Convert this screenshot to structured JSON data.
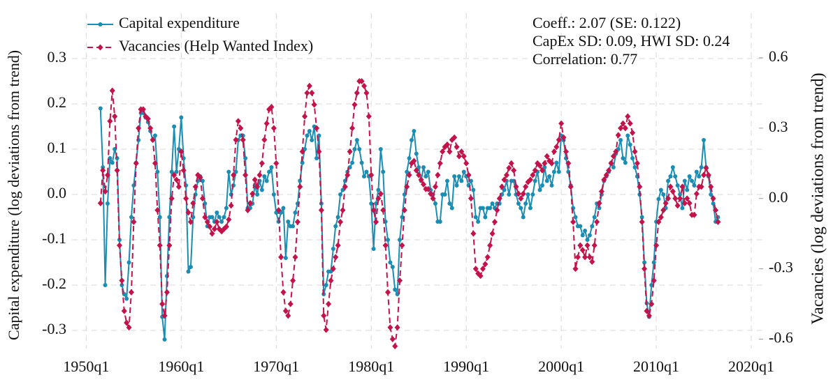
{
  "chart_data": {
    "type": "line",
    "ylabel": "Capital expenditure (log deviations from trend)",
    "y2label": "Vacancies (log deviations from trend)",
    "annotations": [
      "Coeff.: 2.07 (SE: 0.122)",
      "CapEx SD: 0.09, HWI SD: 0.24",
      "Correlation: 0.77"
    ],
    "xlim": [
      "1948q3",
      "2021q2"
    ],
    "xticks": [
      "1950q1",
      "1960q1",
      "1970q1",
      "1980q1",
      "1990q1",
      "2000q1",
      "2010q1",
      "2020q1"
    ],
    "ylim": [
      -0.34,
      0.4
    ],
    "yticks": [
      -0.3,
      -0.2,
      -0.1,
      {
        "value": 0,
        "label": "0.0"
      },
      0.1,
      0.2,
      0.3
    ],
    "y2lim": [
      -0.64,
      0.79
    ],
    "y2ticks": [
      -0.6,
      -0.3,
      {
        "value": 0,
        "label": "0.0"
      },
      0.3,
      0.6
    ],
    "grid": true,
    "legend": "upper left",
    "x": [
      "1951q3",
      "1951q4",
      "1952q1",
      "1952q2",
      "1952q3",
      "1952q4",
      "1953q1",
      "1953q2",
      "1953q3",
      "1953q4",
      "1954q1",
      "1954q2",
      "1954q3",
      "1954q4",
      "1955q1",
      "1955q2",
      "1955q3",
      "1955q4",
      "1956q1",
      "1956q2",
      "1956q3",
      "1956q4",
      "1957q1",
      "1957q2",
      "1957q3",
      "1957q4",
      "1958q1",
      "1958q2",
      "1958q3",
      "1958q4",
      "1959q1",
      "1959q2",
      "1959q3",
      "1959q4",
      "1960q1",
      "1960q2",
      "1960q3",
      "1960q4",
      "1961q1",
      "1961q2",
      "1961q3",
      "1961q4",
      "1962q1",
      "1962q2",
      "1962q3",
      "1962q4",
      "1963q1",
      "1963q2",
      "1963q3",
      "1963q4",
      "1964q1",
      "1964q2",
      "1964q3",
      "1964q4",
      "1965q1",
      "1965q2",
      "1965q3",
      "1965q4",
      "1966q1",
      "1966q2",
      "1966q3",
      "1966q4",
      "1967q1",
      "1967q2",
      "1967q3",
      "1967q4",
      "1968q1",
      "1968q2",
      "1968q3",
      "1968q4",
      "1969q1",
      "1969q2",
      "1969q3",
      "1969q4",
      "1970q1",
      "1970q2",
      "1970q3",
      "1970q4",
      "1971q1",
      "1971q2",
      "1971q3",
      "1971q4",
      "1972q1",
      "1972q2",
      "1972q3",
      "1972q4",
      "1973q1",
      "1973q2",
      "1973q3",
      "1973q4",
      "1974q1",
      "1974q2",
      "1974q3",
      "1974q4",
      "1975q1",
      "1975q2",
      "1975q3",
      "1975q4",
      "1976q1",
      "1976q2",
      "1976q3",
      "1976q4",
      "1977q1",
      "1977q2",
      "1977q3",
      "1977q4",
      "1978q1",
      "1978q2",
      "1978q3",
      "1978q4",
      "1979q1",
      "1979q2",
      "1979q3",
      "1979q4",
      "1980q1",
      "1980q2",
      "1980q3",
      "1980q4",
      "1981q1",
      "1981q2",
      "1981q3",
      "1981q4",
      "1982q1",
      "1982q2",
      "1982q3",
      "1982q4",
      "1983q1",
      "1983q2",
      "1983q3",
      "1983q4",
      "1984q1",
      "1984q2",
      "1984q3",
      "1984q4",
      "1985q1",
      "1985q2",
      "1985q3",
      "1985q4",
      "1986q1",
      "1986q2",
      "1986q3",
      "1986q4",
      "1987q1",
      "1987q2",
      "1987q3",
      "1987q4",
      "1988q1",
      "1988q2",
      "1988q3",
      "1988q4",
      "1989q1",
      "1989q2",
      "1989q3",
      "1989q4",
      "1990q1",
      "1990q2",
      "1990q3",
      "1990q4",
      "1991q1",
      "1991q2",
      "1991q3",
      "1991q4",
      "1992q1",
      "1992q2",
      "1992q3",
      "1992q4",
      "1993q1",
      "1993q2",
      "1993q3",
      "1993q4",
      "1994q1",
      "1994q2",
      "1994q3",
      "1994q4",
      "1995q1",
      "1995q2",
      "1995q3",
      "1995q4",
      "1996q1",
      "1996q2",
      "1996q3",
      "1996q4",
      "1997q1",
      "1997q2",
      "1997q3",
      "1997q4",
      "1998q1",
      "1998q2",
      "1998q3",
      "1998q4",
      "1999q1",
      "1999q2",
      "1999q3",
      "1999q4",
      "2000q1",
      "2000q2",
      "2000q3",
      "2000q4",
      "2001q1",
      "2001q2",
      "2001q3",
      "2001q4",
      "2002q1",
      "2002q2",
      "2002q3",
      "2002q4",
      "2003q1",
      "2003q2",
      "2003q3",
      "2003q4",
      "2004q1",
      "2004q2",
      "2004q3",
      "2004q4",
      "2005q1",
      "2005q2",
      "2005q3",
      "2005q4",
      "2006q1",
      "2006q2",
      "2006q3",
      "2006q4",
      "2007q1",
      "2007q2",
      "2007q3",
      "2007q4",
      "2008q1",
      "2008q2",
      "2008q3",
      "2008q4",
      "2009q1",
      "2009q2",
      "2009q3",
      "2009q4",
      "2010q1",
      "2010q2",
      "2010q3",
      "2010q4",
      "2011q1",
      "2011q2",
      "2011q3",
      "2011q4",
      "2012q1",
      "2012q2",
      "2012q3",
      "2012q4",
      "2013q1",
      "2013q2",
      "2013q3",
      "2013q4",
      "2014q1",
      "2014q2",
      "2014q3",
      "2014q4",
      "2015q1",
      "2015q2",
      "2015q3",
      "2015q4",
      "2016q1",
      "2016q2",
      "2016q3"
    ],
    "series": [
      {
        "name": "Capital expenditure",
        "color": "#1b8db3",
        "marker": "circle",
        "dash": false,
        "values": [
          0.19,
          0.06,
          -0.2,
          -0.02,
          0.08,
          0.07,
          0.1,
          0.08,
          -0.1,
          -0.2,
          -0.22,
          -0.23,
          -0.15,
          -0.05,
          0.02,
          0.07,
          0.12,
          0.18,
          0.18,
          0.17,
          0.16,
          0.14,
          0.12,
          0.13,
          0.05,
          -0.05,
          -0.27,
          -0.32,
          -0.18,
          -0.05,
          0.05,
          0.15,
          0.05,
          0.1,
          0.17,
          0.08,
          0.02,
          -0.17,
          -0.16,
          -0.05,
          0.0,
          0.03,
          0.04,
          0.03,
          -0.02,
          -0.07,
          -0.05,
          -0.05,
          -0.06,
          -0.04,
          -0.05,
          -0.06,
          -0.05,
          -0.03,
          0.05,
          0.0,
          0.02,
          0.05,
          0.12,
          0.13,
          0.13,
          0.08,
          -0.03,
          -0.03,
          -0.02,
          0.02,
          0.0,
          0.03,
          0.01,
          0.04,
          0.03,
          0.05,
          0.06,
          0.0,
          -0.04,
          -0.06,
          -0.04,
          -0.03,
          -0.14,
          -0.06,
          -0.07,
          -0.07,
          -0.04,
          -0.02,
          0.03,
          0.07,
          0.1,
          0.13,
          0.14,
          0.12,
          0.15,
          0.08,
          0.13,
          -0.02,
          -0.22,
          -0.2,
          -0.17,
          -0.17,
          -0.12,
          -0.07,
          -0.05,
          0.0,
          0.01,
          0.03,
          0.05,
          0.06,
          0.07,
          0.1,
          0.12,
          0.1,
          0.07,
          0.04,
          0.05,
          0.04,
          -0.02,
          -0.12,
          -0.02,
          0.01,
          0.1,
          0.05,
          -0.06,
          -0.1,
          -0.15,
          -0.16,
          -0.21,
          -0.22,
          -0.1,
          -0.05,
          0.0,
          0.05,
          0.08,
          0.12,
          0.14,
          0.09,
          0.06,
          0.03,
          0.06,
          0.04,
          0.05,
          0.01,
          0.0,
          -0.02,
          -0.06,
          -0.06,
          0.0,
          0.0,
          0.03,
          -0.02,
          -0.03,
          0.04,
          0.02,
          0.04,
          0.03,
          0.05,
          0.04,
          0.02,
          0.03,
          0.01,
          -0.05,
          -0.06,
          -0.03,
          -0.03,
          -0.05,
          -0.03,
          -0.03,
          -0.02,
          -0.03,
          -0.02,
          -0.02,
          0.0,
          0.01,
          0.03,
          0.0,
          0.03,
          0.03,
          0.0,
          -0.02,
          -0.03,
          -0.05,
          -0.02,
          0.0,
          -0.03,
          0.0,
          0.03,
          0.05,
          0.01,
          0.02,
          0.06,
          0.03,
          0.04,
          0.02,
          0.05,
          0.07,
          0.05,
          0.13,
          0.12,
          0.08,
          0.05,
          0.02,
          -0.03,
          -0.05,
          -0.07,
          -0.07,
          -0.09,
          -0.08,
          -0.1,
          -0.09,
          -0.07,
          -0.05,
          -0.02,
          -0.03,
          0.0,
          0.03,
          0.04,
          0.05,
          0.07,
          0.06,
          0.09,
          0.1,
          0.12,
          0.08,
          0.07,
          0.13,
          0.11,
          0.08,
          0.06,
          0.04,
          0.0,
          -0.05,
          -0.15,
          -0.24,
          -0.27,
          -0.2,
          -0.15,
          -0.06,
          -0.01,
          0.01,
          0.0,
          -0.03,
          0.03,
          0.04,
          0.06,
          0.04,
          0.02,
          0.0,
          -0.03,
          0.03,
          0.01,
          0.04,
          0.03,
          0.02,
          0.05,
          0.04,
          0.06,
          0.12,
          0.06,
          0.04,
          0.0,
          -0.02,
          -0.06,
          -0.05
        ]
      },
      {
        "name": "Vacancies (Help Wanted Index)",
        "color": "#c4124a",
        "marker": "diamond",
        "dash": true,
        "axis": "y2",
        "values": [
          -0.02,
          0.12,
          0.03,
          0.1,
          0.33,
          0.46,
          0.35,
          0.12,
          -0.2,
          -0.35,
          -0.48,
          -0.53,
          -0.55,
          -0.4,
          -0.1,
          0.15,
          0.3,
          0.38,
          0.38,
          0.35,
          0.34,
          0.3,
          0.25,
          0.15,
          -0.05,
          -0.2,
          -0.45,
          -0.5,
          -0.4,
          -0.2,
          0.0,
          0.1,
          0.08,
          0.05,
          0.2,
          0.12,
          0.0,
          -0.06,
          -0.1,
          -0.02,
          0.05,
          0.1,
          0.09,
          0.0,
          -0.08,
          -0.1,
          -0.12,
          -0.15,
          -0.13,
          -0.1,
          -0.13,
          -0.14,
          -0.13,
          -0.12,
          -0.09,
          -0.03,
          0.1,
          0.25,
          0.33,
          0.3,
          0.25,
          0.1,
          -0.05,
          -0.02,
          0.02,
          0.08,
          0.05,
          0.1,
          0.15,
          0.25,
          0.32,
          0.38,
          0.39,
          0.3,
          0.15,
          -0.05,
          -0.25,
          -0.4,
          -0.48,
          -0.5,
          -0.45,
          -0.35,
          -0.25,
          -0.1,
          0.05,
          0.2,
          0.35,
          0.45,
          0.48,
          0.45,
          0.4,
          0.3,
          0.2,
          -0.05,
          -0.5,
          -0.56,
          -0.45,
          -0.35,
          -0.3,
          -0.25,
          -0.2,
          -0.1,
          -0.05,
          0.05,
          0.1,
          0.2,
          0.3,
          0.4,
          0.45,
          0.5,
          0.5,
          0.48,
          0.45,
          0.35,
          0.1,
          -0.05,
          -0.1,
          0.0,
          0.02,
          -0.05,
          -0.2,
          -0.4,
          -0.55,
          -0.6,
          -0.63,
          -0.55,
          -0.35,
          -0.2,
          -0.05,
          0.05,
          0.1,
          0.15,
          0.16,
          0.12,
          0.1,
          0.08,
          0.06,
          0.04,
          0.04,
          0.02,
          0.0,
          0.05,
          0.1,
          0.15,
          0.2,
          0.22,
          0.23,
          0.2,
          0.25,
          0.26,
          0.22,
          0.18,
          0.2,
          0.18,
          0.15,
          0.1,
          0.0,
          -0.15,
          -0.3,
          -0.32,
          -0.33,
          -0.3,
          -0.28,
          -0.25,
          -0.2,
          -0.15,
          -0.1,
          -0.05,
          0.0,
          0.05,
          0.08,
          0.1,
          0.13,
          0.15,
          0.12,
          0.05,
          0.02,
          0.0,
          0.02,
          0.05,
          0.07,
          0.08,
          0.1,
          0.12,
          0.15,
          0.14,
          0.12,
          0.15,
          0.18,
          0.16,
          0.15,
          0.2,
          0.22,
          0.25,
          0.32,
          0.26,
          0.2,
          0.15,
          0.05,
          -0.1,
          -0.3,
          -0.25,
          -0.2,
          -0.22,
          -0.25,
          -0.2,
          -0.25,
          -0.27,
          -0.2,
          -0.1,
          -0.02,
          0.03,
          0.08,
          0.1,
          0.12,
          0.15,
          0.18,
          0.2,
          0.27,
          0.3,
          0.32,
          0.3,
          0.35,
          0.32,
          0.28,
          0.2,
          0.15,
          0.05,
          -0.1,
          -0.3,
          -0.48,
          -0.5,
          -0.45,
          -0.35,
          -0.2,
          -0.1,
          -0.08,
          -0.05,
          -0.02,
          0.0,
          0.05,
          0.03,
          0.0,
          -0.03,
          0.0,
          0.05,
          -0.02,
          0.0,
          -0.02,
          -0.07,
          -0.07,
          0.02,
          0.05,
          0.05,
          0.1,
          0.13,
          0.1,
          0.05,
          0.0,
          -0.05,
          -0.1
        ]
      }
    ]
  }
}
